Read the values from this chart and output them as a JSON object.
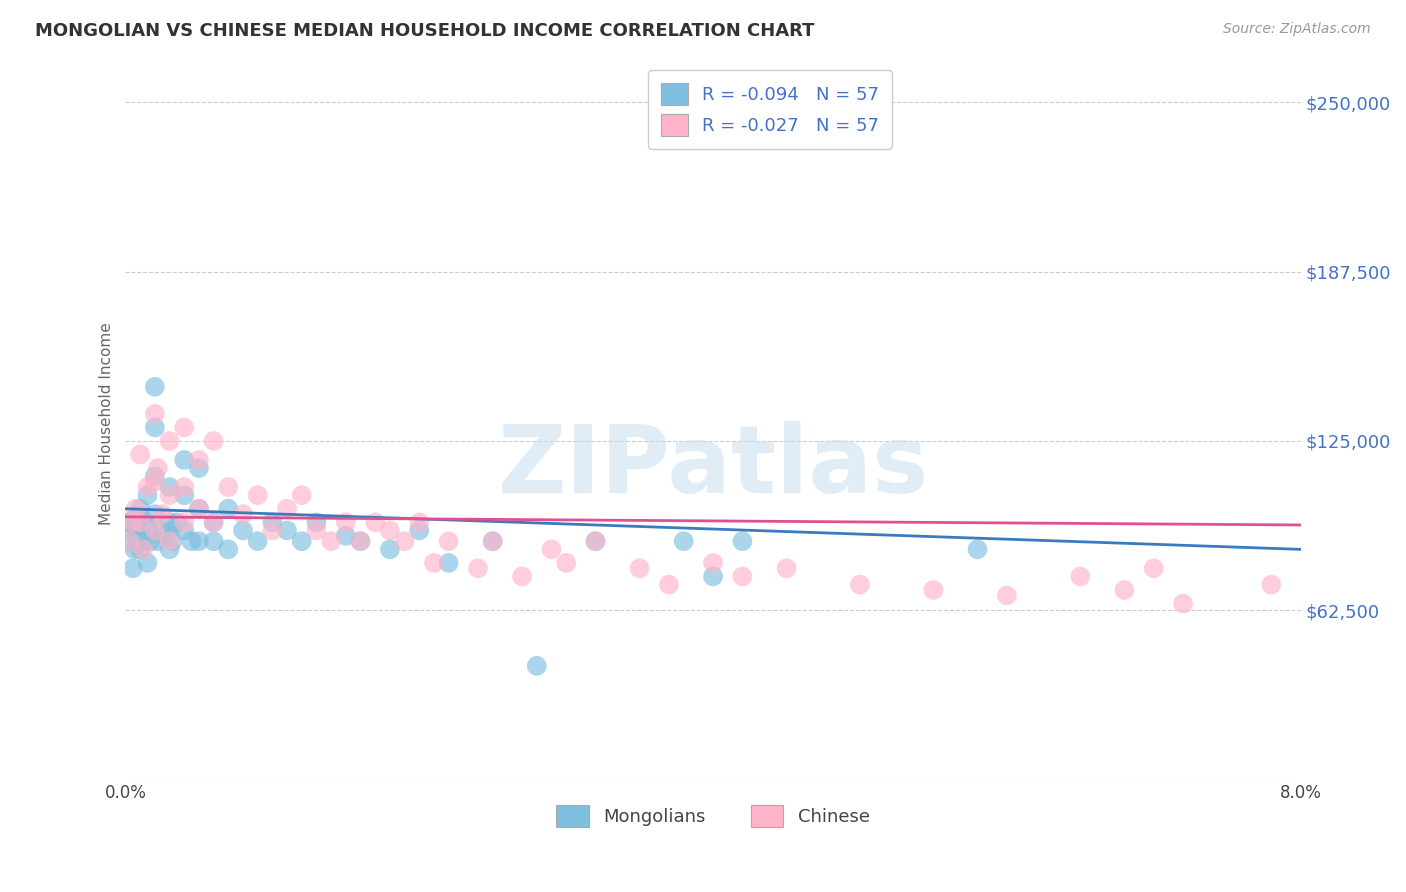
{
  "title": "MONGOLIAN VS CHINESE MEDIAN HOUSEHOLD INCOME CORRELATION CHART",
  "source": "Source: ZipAtlas.com",
  "ylabel": "Median Household Income",
  "xlim": [
    0.0,
    0.08
  ],
  "ylim": [
    0,
    262500
  ],
  "yticks": [
    0,
    62500,
    125000,
    187500,
    250000
  ],
  "ytick_labels": [
    "",
    "$62,500",
    "$125,000",
    "$187,500",
    "$250,000"
  ],
  "xticks": [
    0.0,
    0.01,
    0.02,
    0.03,
    0.04,
    0.05,
    0.06,
    0.07,
    0.08
  ],
  "xtick_labels": [
    "0.0%",
    "",
    "",
    "",
    "",
    "",
    "",
    "",
    "8.0%"
  ],
  "mongolian_color": "#7fbfdf",
  "chinese_color": "#ffb3c8",
  "mongolian_line_color": "#3a7abf",
  "chinese_line_color": "#e05090",
  "R_mongolian": -0.094,
  "R_chinese": -0.027,
  "N_mongolian": 57,
  "N_chinese": 57,
  "legend_label_mongolian": "Mongolians",
  "legend_label_chinese": "Chinese",
  "watermark": "ZIPatlas",
  "label_color": "#4472c4",
  "mongolian_x": [
    0.0002,
    0.0003,
    0.0004,
    0.0005,
    0.0006,
    0.0007,
    0.0008,
    0.001,
    0.001,
    0.001,
    0.0012,
    0.0013,
    0.0015,
    0.0015,
    0.0016,
    0.0017,
    0.002,
    0.002,
    0.002,
    0.002,
    0.0022,
    0.0025,
    0.003,
    0.003,
    0.003,
    0.003,
    0.0032,
    0.0035,
    0.004,
    0.004,
    0.004,
    0.0045,
    0.005,
    0.005,
    0.005,
    0.006,
    0.006,
    0.007,
    0.007,
    0.008,
    0.009,
    0.01,
    0.011,
    0.012,
    0.013,
    0.015,
    0.016,
    0.018,
    0.02,
    0.022,
    0.025,
    0.028,
    0.032,
    0.038,
    0.04,
    0.042,
    0.058
  ],
  "mongolian_y": [
    95000,
    88000,
    92000,
    78000,
    85000,
    97000,
    90000,
    100000,
    85000,
    93000,
    88000,
    95000,
    105000,
    80000,
    92000,
    88000,
    112000,
    130000,
    145000,
    98000,
    88000,
    92000,
    108000,
    95000,
    85000,
    92000,
    88000,
    95000,
    118000,
    105000,
    92000,
    88000,
    115000,
    100000,
    88000,
    95000,
    88000,
    100000,
    85000,
    92000,
    88000,
    95000,
    92000,
    88000,
    95000,
    90000,
    88000,
    85000,
    92000,
    80000,
    88000,
    42000,
    88000,
    88000,
    75000,
    88000,
    85000
  ],
  "chinese_x": [
    0.0003,
    0.0005,
    0.0007,
    0.001,
    0.001,
    0.0012,
    0.0015,
    0.002,
    0.002,
    0.002,
    0.0022,
    0.0025,
    0.003,
    0.003,
    0.003,
    0.004,
    0.004,
    0.004,
    0.005,
    0.005,
    0.006,
    0.006,
    0.007,
    0.008,
    0.009,
    0.01,
    0.011,
    0.012,
    0.013,
    0.014,
    0.015,
    0.016,
    0.017,
    0.018,
    0.019,
    0.02,
    0.021,
    0.022,
    0.024,
    0.025,
    0.027,
    0.029,
    0.03,
    0.032,
    0.035,
    0.037,
    0.04,
    0.042,
    0.045,
    0.05,
    0.055,
    0.06,
    0.065,
    0.068,
    0.07,
    0.072,
    0.078
  ],
  "chinese_y": [
    88000,
    95000,
    100000,
    120000,
    95000,
    85000,
    108000,
    135000,
    110000,
    92000,
    115000,
    98000,
    125000,
    105000,
    88000,
    130000,
    108000,
    95000,
    118000,
    100000,
    125000,
    95000,
    108000,
    98000,
    105000,
    92000,
    100000,
    105000,
    92000,
    88000,
    95000,
    88000,
    95000,
    92000,
    88000,
    95000,
    80000,
    88000,
    78000,
    88000,
    75000,
    85000,
    80000,
    88000,
    78000,
    72000,
    80000,
    75000,
    78000,
    72000,
    70000,
    68000,
    75000,
    70000,
    78000,
    65000,
    72000
  ],
  "mong_line_y0": 100000,
  "mong_line_y1": 85000,
  "chin_line_y0": 97000,
  "chin_line_y1": 94000
}
